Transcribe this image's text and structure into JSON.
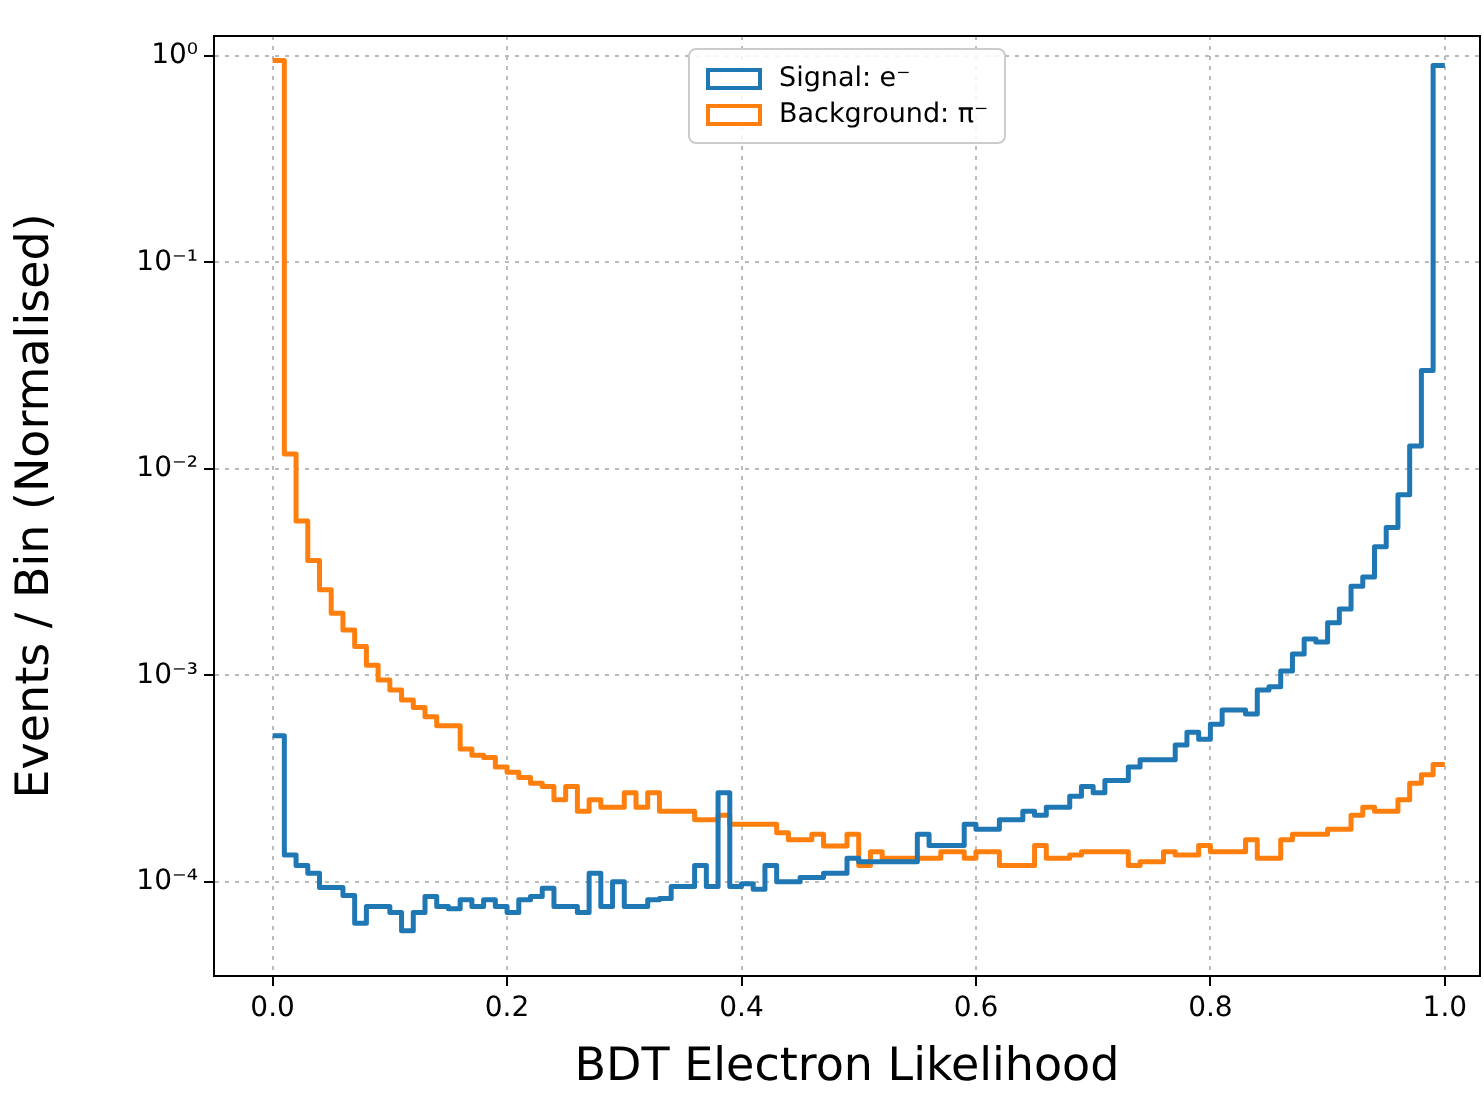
{
  "chart_data": {
    "type": "histogram",
    "xlabel": "BDT Electron Likelihood",
    "ylabel": "Events / Bin (Normalised)",
    "bins": [
      0,
      0.01,
      0.02,
      0.03,
      0.04,
      0.05,
      0.06,
      0.07,
      0.08,
      0.09,
      0.1,
      0.11,
      0.12,
      0.13,
      0.14,
      0.15,
      0.16,
      0.17,
      0.18,
      0.19,
      0.2,
      0.21,
      0.22,
      0.23,
      0.24,
      0.25,
      0.26,
      0.27,
      0.28,
      0.29,
      0.3,
      0.31,
      0.32,
      0.33,
      0.34,
      0.35,
      0.36,
      0.37,
      0.38,
      0.39,
      0.4,
      0.41,
      0.42,
      0.43,
      0.44,
      0.45,
      0.46,
      0.47,
      0.48,
      0.49,
      0.5,
      0.51,
      0.52,
      0.53,
      0.54,
      0.55,
      0.56,
      0.57,
      0.58,
      0.59,
      0.6,
      0.61,
      0.62,
      0.63,
      0.64,
      0.65,
      0.66,
      0.67,
      0.68,
      0.69,
      0.7,
      0.71,
      0.72,
      0.73,
      0.74,
      0.75,
      0.76,
      0.77,
      0.78,
      0.79,
      0.8,
      0.81,
      0.82,
      0.83,
      0.84,
      0.85,
      0.86,
      0.87,
      0.88,
      0.89,
      0.9,
      0.91,
      0.92,
      0.93,
      0.94,
      0.95,
      0.96,
      0.97,
      0.98,
      0.99,
      1
    ],
    "series": [
      {
        "name": "Signal: e⁻",
        "color": "#1f77b4",
        "values": [
          0.00051,
          0.000135,
          0.00012,
          0.00011,
          9.4e-05,
          9.4e-05,
          8.6e-05,
          6.3e-05,
          7.6e-05,
          7.6e-05,
          7.1e-05,
          5.8e-05,
          7.1e-05,
          8.5e-05,
          7.6e-05,
          7.4e-05,
          8.2e-05,
          7.6e-05,
          8.2e-05,
          7.6e-05,
          7.1e-05,
          8.2e-05,
          8.5e-05,
          9.3e-05,
          7.6e-05,
          7.6e-05,
          7.1e-05,
          0.00011,
          7.6e-05,
          0.0001,
          7.6e-05,
          7.6e-05,
          8.2e-05,
          8.3e-05,
          9.5e-05,
          9.5e-05,
          0.00012,
          9.5e-05,
          0.00027,
          9.5e-05,
          9.8e-05,
          9.2e-05,
          0.00012,
          0.0001,
          0.0001,
          0.000105,
          0.000105,
          0.00011,
          0.00011,
          0.00013,
          0.000125,
          0.000125,
          0.000125,
          0.000125,
          0.000125,
          0.00017,
          0.00015,
          0.00015,
          0.00015,
          0.00019,
          0.00018,
          0.00018,
          0.0002,
          0.0002,
          0.00022,
          0.00021,
          0.00023,
          0.00023,
          0.00026,
          0.00029,
          0.00027,
          0.00031,
          0.00031,
          0.00036,
          0.00039,
          0.00039,
          0.00039,
          0.00046,
          0.00053,
          0.00049,
          0.00058,
          0.00068,
          0.00068,
          0.00065,
          0.00085,
          0.00088,
          0.00105,
          0.00127,
          0.0015,
          0.00145,
          0.0018,
          0.0021,
          0.0027,
          0.003,
          0.0042,
          0.0052,
          0.0075,
          0.0129,
          0.03,
          0.9
        ]
      },
      {
        "name": "Background: π⁻",
        "color": "#ff7f0e",
        "values": [
          0.95,
          0.0118,
          0.0056,
          0.0036,
          0.0026,
          0.002,
          0.00166,
          0.00138,
          0.00112,
          0.00095,
          0.00085,
          0.00076,
          0.0007,
          0.00063,
          0.00057,
          0.00057,
          0.00044,
          0.00041,
          0.0004,
          0.00036,
          0.00034,
          0.00032,
          0.0003,
          0.00029,
          0.00025,
          0.00029,
          0.00022,
          0.00025,
          0.00023,
          0.00023,
          0.00027,
          0.00023,
          0.00027,
          0.00022,
          0.00022,
          0.00022,
          0.0002,
          0.0002,
          0.00021,
          0.00019,
          0.00019,
          0.00019,
          0.00019,
          0.000173,
          0.00016,
          0.00016,
          0.00017,
          0.000149,
          0.000149,
          0.00017,
          0.00012,
          0.00014,
          0.00013,
          0.00013,
          0.00013,
          0.00013,
          0.00013,
          0.00014,
          0.00014,
          0.00013,
          0.00014,
          0.00014,
          0.00012,
          0.00012,
          0.00012,
          0.00015,
          0.00013,
          0.00013,
          0.000135,
          0.00014,
          0.00014,
          0.00014,
          0.00014,
          0.00012,
          0.000125,
          0.000125,
          0.00014,
          0.000135,
          0.000135,
          0.00015,
          0.00014,
          0.00014,
          0.00014,
          0.00016,
          0.00013,
          0.00013,
          0.00016,
          0.00017,
          0.00017,
          0.00017,
          0.00018,
          0.00018,
          0.00021,
          0.00023,
          0.00022,
          0.00022,
          0.00025,
          0.0003,
          0.00033,
          0.00037
        ]
      }
    ],
    "log": "y",
    "xlim": [
      -0.05,
      1.03
    ],
    "ylim": [
      3.5e-05,
      1.25
    ],
    "xticks": [
      {
        "value": 0,
        "label": "0.0"
      },
      0.2,
      0.4,
      0.6,
      0.8,
      {
        "value": 1,
        "label": "1.0"
      }
    ],
    "yticks": [
      {
        "value": 0.0001,
        "label": "10⁻⁴"
      },
      {
        "value": 0.001,
        "label": "10⁻³"
      },
      {
        "value": 0.01,
        "label": "10⁻²"
      },
      {
        "value": 0.1,
        "label": "10⁻¹"
      },
      {
        "value": 1,
        "label": "10⁰"
      }
    ],
    "grid": true,
    "legend": "top"
  }
}
